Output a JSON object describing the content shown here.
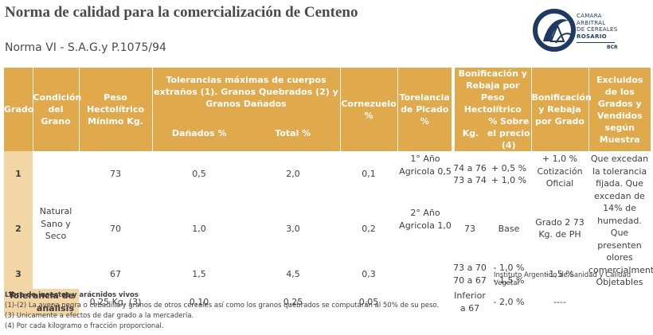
{
  "header": {
    "title": "Norma de calidad para la comercialización de Centeno",
    "subtitle": "Norma VI - S.A.G.y P.1075/94"
  },
  "logo": {
    "line1": "CÁMARA",
    "line2": "ARBITRAL",
    "line3": "DE CEREALES",
    "line4": "ROSARIO",
    "abbr": "BCR",
    "color": "#1f3a62"
  },
  "table": {
    "headers": {
      "grado": "Grado",
      "condicion": "Condición del Grano",
      "peso": "Peso Hectolítrico Mínimo Kg.",
      "tolerancias": "Tolerancias máximas de cuerpos extraños (1). Granos Quebrados (2) y Granos Dañados",
      "danados": "Dañados %",
      "total": "Total %",
      "cornezuelo": "Cornezuelo %",
      "picado": "Torelancia de Picado %",
      "bonif_peso": "Bonificación y Rebaja por Peso Hectolítrico",
      "kg": "Kg.",
      "sobre_precio": "% Sobre el precio (4)",
      "bonif_grado": "Bonificación y Rebaja por Grado",
      "excluidos": "Excluidos de los Grados y Vendidos según Muestra"
    },
    "condicion": "Natural Sano y Seco",
    "rows": [
      {
        "grado": "1",
        "peso": "73",
        "danados": "0,5",
        "total": "2,0",
        "cornezuelo": "0,1",
        "kg_1": "74 a 76",
        "kg_2": "73 a 74",
        "pct_1": "+ 0,5 %",
        "pct_2": "+ 1,0 %",
        "bonif_grado": "+ 1,0 % Cotización Oficial"
      },
      {
        "grado": "2",
        "peso": "70",
        "danados": "1,0",
        "total": "3,0",
        "cornezuelo": "0,2",
        "kg_1": "73",
        "pct_1": "Base",
        "bonif_grado": "Grado 2 73 Kg. de PH"
      },
      {
        "grado": "3",
        "peso": "67",
        "danados": "1,5",
        "total": "4,5",
        "cornezuelo": "0,3",
        "kg_1": "73 a 70",
        "kg_2": "70 a 67",
        "pct_1": "- 1,0 %",
        "pct_2": "- 1,5 %",
        "bonif_grado": "-1,5 %"
      }
    ],
    "picado_1": "1° Año Agricola 0,5",
    "picado_2": "2° Año Agricola 1,0",
    "excluidos": "Que excedan la tolerancia fijada. Que excedan de 14% de humedad. Que presenten olores comercialmente Objetables",
    "tolerancia": {
      "label": "Tolerancia de análisis",
      "peso": "0,25 Kg. (3)",
      "danados": "0,10",
      "total": "0,25",
      "cornezuelo": "0,05",
      "kg": "Inferior a 67",
      "pct": "- 2,0 %",
      "bonif_grado": "----"
    }
  },
  "source": "Instituto Argentino de Sanidad y Calidad Vegetal",
  "notes": {
    "n0": "Libre de insectos y arácnidos vivos",
    "n1": "(1)-(2) La avena negra o cebadilla y granos de otros cereales así como los granos quebrados se computarán al 50% de su peso.",
    "n2": "(3) Unicamente a efectos de dar grado a la mercadería.",
    "n3": "(4) Por cada kilogramo o fracción proporcional."
  },
  "colors": {
    "header_bg": "#e0a94b",
    "grade_col_bg": "#f3d6a6"
  }
}
